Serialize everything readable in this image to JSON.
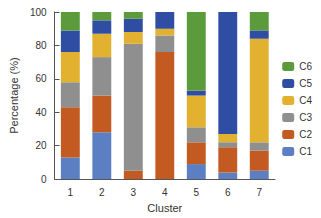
{
  "chart_data": {
    "type": "bar",
    "stacked": true,
    "grid": false,
    "legend": "right",
    "x_label": "Cluster",
    "y_label": "Percentage (%)",
    "categories": [
      "1",
      "2",
      "3",
      "4",
      "5",
      "6",
      "7"
    ],
    "ylim": [
      0,
      100
    ],
    "yticks": [
      0,
      20,
      40,
      60,
      80,
      100
    ],
    "series": [
      {
        "name": "C1",
        "color": "#5b7fc2",
        "values": [
          13,
          28,
          0,
          0,
          9,
          4,
          5
        ]
      },
      {
        "name": "C2",
        "color": "#c25a22",
        "values": [
          30,
          22,
          5,
          76,
          13,
          15,
          12
        ]
      },
      {
        "name": "C3",
        "color": "#8f8f8f",
        "values": [
          15,
          23,
          76,
          10,
          9,
          3,
          5
        ]
      },
      {
        "name": "C4",
        "color": "#e2b12f",
        "values": [
          18,
          14,
          7,
          4,
          19,
          5,
          62
        ]
      },
      {
        "name": "C5",
        "color": "#2f4ea3",
        "values": [
          13,
          8,
          8,
          10,
          3,
          73,
          5
        ]
      },
      {
        "name": "C6",
        "color": "#5b9b3c",
        "values": [
          11,
          5,
          4,
          0,
          47,
          0,
          11
        ]
      }
    ]
  }
}
